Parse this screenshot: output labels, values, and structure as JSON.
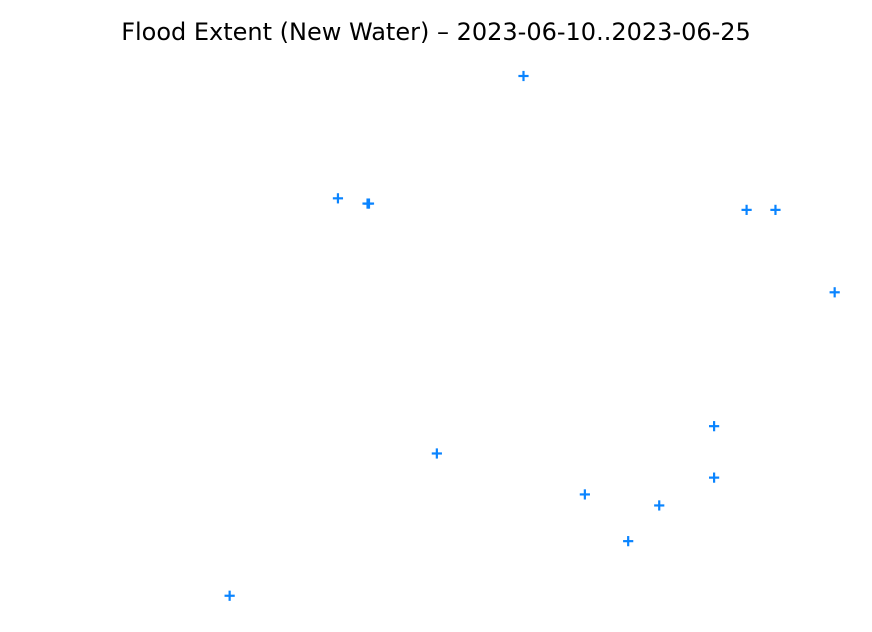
{
  "chart_data": {
    "type": "scatter",
    "title": "Flood Extent (New Water) – 2023-06-10..2023-06-25",
    "xlabel": "",
    "ylabel": "",
    "axes_visible": false,
    "grid": false,
    "xlim": [
      0,
      100
    ],
    "ylim": [
      0,
      100
    ],
    "series": [
      {
        "name": "New Water",
        "marker": "plus",
        "color": "#0a84ff",
        "points": [
          {
            "x": 54.5,
            "y": 100.0
          },
          {
            "x": 28.8,
            "y": 76.7
          },
          {
            "x": 32.9,
            "y": 75.7
          },
          {
            "x": 33.1,
            "y": 75.7
          },
          {
            "x": 85.4,
            "y": 74.5
          },
          {
            "x": 89.4,
            "y": 74.5
          },
          {
            "x": 97.6,
            "y": 58.8
          },
          {
            "x": 80.9,
            "y": 33.3
          },
          {
            "x": 42.5,
            "y": 28.1
          },
          {
            "x": 80.9,
            "y": 23.5
          },
          {
            "x": 63.0,
            "y": 20.3
          },
          {
            "x": 73.3,
            "y": 18.2
          },
          {
            "x": 69.0,
            "y": 11.4
          },
          {
            "x": 13.8,
            "y": 1.0
          }
        ]
      }
    ]
  }
}
